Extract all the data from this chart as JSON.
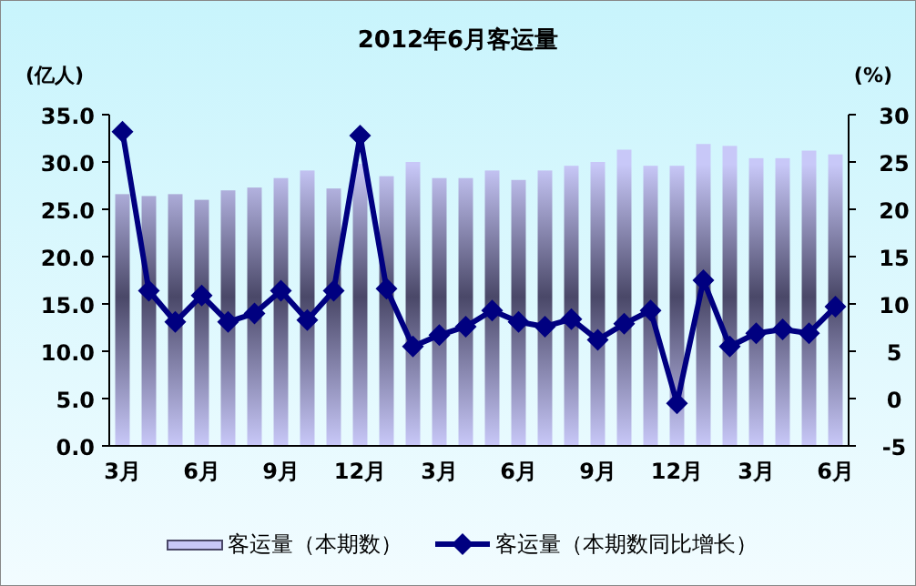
{
  "chart_data": {
    "type": "bar",
    "title": "2012年6月客运量",
    "ylabel": "(亿人)",
    "y2label": "(%)",
    "categories": [
      "3月",
      null,
      null,
      "6月",
      null,
      null,
      "9月",
      null,
      null,
      "12月",
      null,
      null,
      "3月",
      null,
      null,
      "6月",
      null,
      null,
      "9月",
      null,
      null,
      "12月",
      null,
      null,
      "3月",
      null,
      null,
      "6月"
    ],
    "series": [
      {
        "name": "客运量（本期数）",
        "color": "#c8c8f8",
        "values": [
          26.6,
          26.4,
          26.6,
          26.0,
          27.0,
          27.3,
          28.3,
          29.1,
          27.2,
          29.8,
          28.5,
          30.0,
          28.3,
          28.3,
          29.1,
          28.1,
          29.1,
          29.6,
          30.0,
          31.3,
          29.6,
          29.6,
          31.9,
          31.7,
          30.4,
          30.4,
          31.2,
          30.8
        ]
      },
      {
        "name": "客运量（本期数同比增长）",
        "type": "line",
        "axis": "y2",
        "color": "#000080",
        "marker": "diamond",
        "values": [
          28.2,
          11.4,
          8.1,
          10.9,
          8.1,
          9.0,
          11.4,
          8.3,
          11.4,
          27.8,
          11.6,
          5.5,
          6.7,
          7.6,
          9.3,
          8.1,
          7.6,
          8.4,
          6.2,
          7.9,
          9.3,
          -0.5,
          12.5,
          5.5,
          6.9,
          7.3,
          6.9,
          9.7
        ]
      }
    ],
    "ylim": [
      0,
      35
    ],
    "yticks": [
      {
        "value": 0,
        "label": "0.0"
      },
      {
        "value": 5,
        "label": "5.0"
      },
      {
        "value": 10,
        "label": "10.0"
      },
      {
        "value": 15,
        "label": "15.0"
      },
      {
        "value": 20,
        "label": "20.0"
      },
      {
        "value": 25,
        "label": "25.0"
      },
      {
        "value": 30,
        "label": "30.0"
      },
      {
        "value": 35,
        "label": "35.0"
      }
    ],
    "y2lim": [
      -5,
      30
    ],
    "y2ticks": [
      -5,
      0,
      5,
      10,
      15,
      20,
      25,
      30
    ],
    "legend": "bottom",
    "grid": false
  }
}
